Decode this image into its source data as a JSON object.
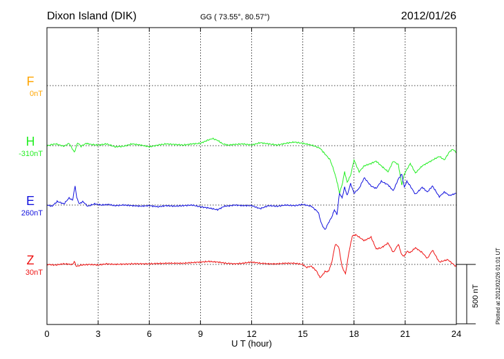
{
  "chart_data": {
    "type": "line",
    "title": "Dixon Island (DIK)",
    "subtitle": "GG ( 73.55°,  80.57°)",
    "date": "2012/01/26",
    "xlabel": "U T (hour)",
    "xlim": [
      0,
      24
    ],
    "xticks": [
      "0",
      "3",
      "6",
      "9",
      "12",
      "15",
      "18",
      "21",
      "24"
    ],
    "grid": true,
    "scale_bar_label": "500 nT",
    "scale_bar_nT": 500,
    "plot_note": "Plotted at 2012/02/26 01:01 UT",
    "series": [
      {
        "name": "F",
        "offset_label": "0nT",
        "color": "#ffa500",
        "x": [],
        "y": []
      },
      {
        "name": "H",
        "offset_label": "-310nT",
        "color": "#22ee22",
        "x": [
          0,
          0.5,
          1,
          1.3,
          1.5,
          1.6,
          1.7,
          1.8,
          2,
          2.3,
          2.6,
          3,
          3.5,
          4,
          4.5,
          5,
          5.5,
          6,
          6.5,
          7,
          7.5,
          8,
          8.5,
          9,
          9.4,
          9.7,
          10,
          10.3,
          10.6,
          11,
          11.5,
          12,
          12.5,
          13,
          13.5,
          14,
          14.5,
          15,
          15.5,
          16,
          16.3,
          16.6,
          16.8,
          17,
          17.15,
          17.3,
          17.45,
          17.6,
          17.8,
          18,
          18.3,
          18.6,
          19,
          19.3,
          19.6,
          20,
          20.3,
          20.6,
          20.8,
          20.95,
          21.1,
          21.3,
          21.6,
          22,
          22.5,
          23,
          23.3,
          23.6,
          23.8,
          24
        ],
        "y": [
          0,
          15,
          -5,
          20,
          -30,
          -55,
          -20,
          25,
          -5,
          20,
          10,
          5,
          15,
          -10,
          -5,
          15,
          5,
          -10,
          5,
          15,
          10,
          5,
          15,
          20,
          45,
          60,
          45,
          15,
          5,
          10,
          15,
          5,
          25,
          15,
          5,
          20,
          30,
          20,
          5,
          -20,
          -70,
          -120,
          -200,
          -300,
          -400,
          -330,
          -220,
          -310,
          -250,
          -120,
          -220,
          -170,
          -150,
          -130,
          -170,
          -220,
          -130,
          -160,
          -330,
          -240,
          -200,
          -150,
          -230,
          -170,
          -130,
          -90,
          -120,
          -50,
          -30,
          -60
        ]
      },
      {
        "name": "E",
        "offset_label": "260nT",
        "color": "#1010dd",
        "x": [
          0,
          0.3,
          0.6,
          1,
          1.3,
          1.5,
          1.65,
          1.75,
          1.9,
          2.1,
          2.4,
          2.8,
          3.2,
          3.6,
          4,
          4.5,
          5,
          5.5,
          6,
          6.5,
          7,
          7.5,
          8,
          8.5,
          9,
          9.5,
          10,
          10.4,
          10.8,
          11,
          11.5,
          12,
          12.5,
          13,
          13.5,
          14,
          14.5,
          15,
          15.5,
          15.9,
          16.1,
          16.3,
          16.5,
          16.7,
          16.85,
          17,
          17.15,
          17.3,
          17.45,
          17.6,
          17.8,
          18,
          18.3,
          18.6,
          19,
          19.3,
          19.6,
          20,
          20.3,
          20.6,
          20.8,
          20.95,
          21.1,
          21.3,
          21.6,
          22,
          22.3,
          22.6,
          23,
          23.3,
          23.6,
          24
        ],
        "y": [
          0,
          -10,
          30,
          10,
          60,
          40,
          160,
          60,
          10,
          30,
          -10,
          10,
          0,
          5,
          -5,
          0,
          -5,
          -10,
          -5,
          -15,
          -5,
          -10,
          -5,
          0,
          -15,
          -25,
          -40,
          -10,
          -5,
          0,
          -5,
          -5,
          -30,
          -5,
          -10,
          0,
          -5,
          5,
          -10,
          -60,
          -160,
          -210,
          -150,
          -100,
          -40,
          -80,
          100,
          60,
          150,
          80,
          180,
          100,
          140,
          230,
          160,
          140,
          200,
          170,
          120,
          220,
          260,
          150,
          200,
          160,
          90,
          150,
          110,
          160,
          70,
          110,
          80,
          100
        ]
      },
      {
        "name": "Z",
        "offset_label": "30nT",
        "color": "#ee1111",
        "x": [
          0,
          0.5,
          1,
          1.5,
          1.6,
          1.7,
          1.8,
          2,
          2.5,
          3,
          3.5,
          4,
          5,
          6,
          7,
          8,
          9,
          9.5,
          10,
          10.5,
          11,
          11.5,
          12,
          12.5,
          13,
          13.5,
          14,
          14.5,
          15,
          15.2,
          15.5,
          15.8,
          16,
          16.1,
          16.3,
          16.5,
          16.7,
          16.9,
          17.1,
          17.3,
          17.5,
          17.7,
          17.9,
          18.1,
          18.3,
          18.6,
          19,
          19.3,
          19.6,
          20,
          20.3,
          20.6,
          20.8,
          20.95,
          21.1,
          21.3,
          21.6,
          22,
          22.3,
          22.6,
          23,
          23.5,
          24
        ],
        "y": [
          0,
          -5,
          5,
          0,
          25,
          -10,
          -15,
          -5,
          0,
          -5,
          5,
          0,
          5,
          5,
          10,
          10,
          20,
          25,
          20,
          10,
          5,
          10,
          20,
          10,
          5,
          5,
          10,
          10,
          0,
          -25,
          -15,
          -55,
          -110,
          -100,
          -60,
          -60,
          20,
          170,
          150,
          -20,
          -80,
          100,
          240,
          250,
          230,
          200,
          230,
          130,
          140,
          180,
          100,
          170,
          80,
          70,
          110,
          100,
          140,
          100,
          50,
          120,
          20,
          40,
          -20
        ]
      }
    ]
  }
}
